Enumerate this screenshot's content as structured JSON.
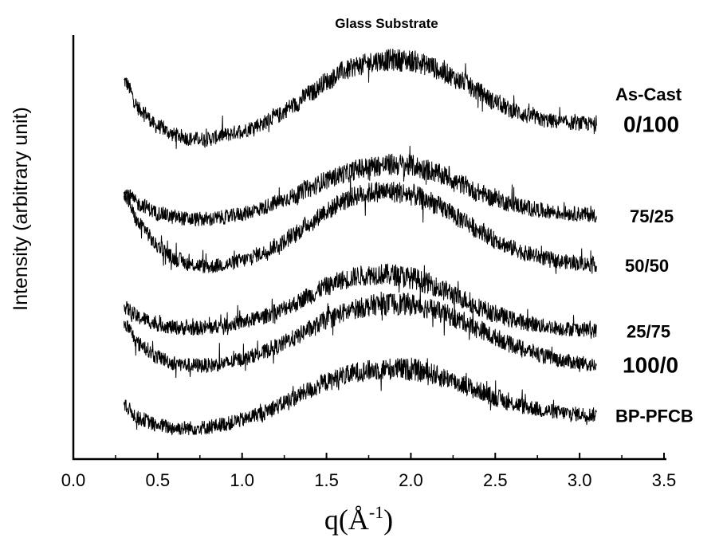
{
  "chart_data": {
    "type": "line",
    "title": "Glass Substrate",
    "xlabel": "q(Å",
    "xlabel_sup": "-1",
    "xlabel_close": ")",
    "ylabel": "Intensity (arbitrary unit)",
    "xlim": [
      0.0,
      3.5
    ],
    "x_ticks": [
      "0.0",
      "0.5",
      "1.0",
      "1.5",
      "2.0",
      "2.5",
      "3.0",
      "3.5"
    ],
    "y_ticks_shown": false,
    "grid": false,
    "legend": "labels at right end of each curve",
    "annotations": [
      "As-Cast"
    ],
    "note_values": "y values are relative intensity in arbitrary units; curves are vertically offset stacked, top to bottom",
    "x": [
      0.3,
      0.4,
      0.5,
      0.6,
      0.7,
      0.8,
      0.9,
      1.0,
      1.1,
      1.2,
      1.3,
      1.4,
      1.5,
      1.6,
      1.7,
      1.8,
      1.9,
      2.0,
      2.1,
      2.2,
      2.3,
      2.4,
      2.5,
      2.6,
      2.7,
      2.8,
      2.9,
      3.0,
      3.1
    ],
    "series": [
      {
        "name": "0/100",
        "values": [
          10.8,
          10.1,
          9.7,
          9.5,
          9.4,
          9.4,
          9.5,
          9.6,
          9.75,
          9.95,
          10.2,
          10.5,
          10.8,
          11.05,
          11.2,
          11.3,
          11.32,
          11.3,
          11.2,
          11.0,
          10.8,
          10.55,
          10.3,
          10.1,
          9.95,
          9.85,
          9.8,
          9.78,
          9.75
        ]
      },
      {
        "name": "75/25",
        "values": [
          8.1,
          7.8,
          7.6,
          7.5,
          7.45,
          7.45,
          7.5,
          7.58,
          7.7,
          7.85,
          8.0,
          8.2,
          8.4,
          8.55,
          8.68,
          8.75,
          8.78,
          8.75,
          8.65,
          8.5,
          8.3,
          8.1,
          7.95,
          7.82,
          7.72,
          7.65,
          7.6,
          7.58,
          7.55
        ]
      },
      {
        "name": "50/50",
        "values": [
          8.0,
          7.3,
          6.8,
          6.5,
          6.35,
          6.3,
          6.35,
          6.45,
          6.6,
          6.8,
          7.05,
          7.35,
          7.65,
          7.9,
          8.05,
          8.12,
          8.12,
          8.05,
          7.9,
          7.7,
          7.45,
          7.2,
          6.95,
          6.75,
          6.6,
          6.5,
          6.42,
          6.38,
          6.35
        ]
      },
      {
        "name": "25/75",
        "values": [
          5.3,
          5.05,
          4.9,
          4.82,
          4.8,
          4.82,
          4.88,
          4.95,
          5.05,
          5.2,
          5.38,
          5.6,
          5.82,
          5.98,
          6.08,
          6.12,
          6.1,
          6.03,
          5.9,
          5.72,
          5.52,
          5.32,
          5.15,
          5.02,
          4.92,
          4.85,
          4.8,
          4.78,
          4.75
        ]
      },
      {
        "name": "100/0",
        "values": [
          4.9,
          4.4,
          4.1,
          3.95,
          3.9,
          3.9,
          3.95,
          4.05,
          4.18,
          4.35,
          4.55,
          4.78,
          5.0,
          5.18,
          5.3,
          5.38,
          5.4,
          5.38,
          5.3,
          5.15,
          4.98,
          4.78,
          4.58,
          4.4,
          4.25,
          4.12,
          4.02,
          3.95,
          3.9
        ]
      },
      {
        "name": "BP-PFCB",
        "values": [
          2.9,
          2.6,
          2.45,
          2.38,
          2.38,
          2.4,
          2.48,
          2.58,
          2.72,
          2.9,
          3.1,
          3.3,
          3.5,
          3.65,
          3.75,
          3.8,
          3.82,
          3.8,
          3.72,
          3.6,
          3.45,
          3.28,
          3.12,
          2.98,
          2.88,
          2.8,
          2.75,
          2.72,
          2.7
        ]
      }
    ]
  },
  "colors": {
    "line": "#000000",
    "axes": "#000000",
    "background": "#ffffff"
  }
}
